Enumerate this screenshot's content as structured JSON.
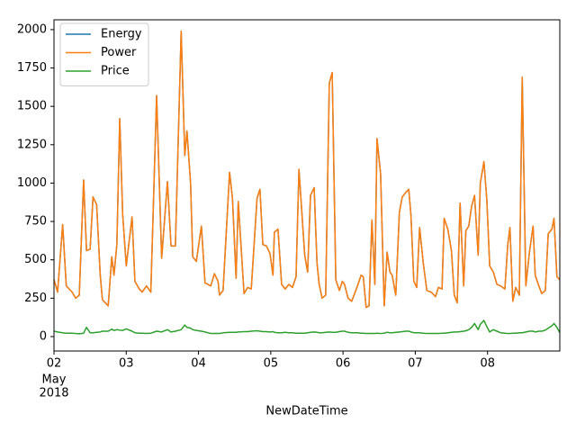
{
  "chart_data": {
    "type": "line",
    "xlabel": "NewDateTime",
    "x_month_label": "May",
    "x_year_label": "2018",
    "x": [
      2.0,
      2.05,
      2.12,
      2.17,
      2.25,
      2.3,
      2.35,
      2.41,
      2.45,
      2.5,
      2.54,
      2.59,
      2.64,
      2.67,
      2.75,
      2.8,
      2.83,
      2.87,
      2.91,
      2.95,
      3.0,
      3.08,
      3.12,
      3.18,
      3.22,
      3.28,
      3.34,
      3.42,
      3.49,
      3.57,
      3.62,
      3.68,
      3.76,
      3.81,
      3.84,
      3.89,
      3.92,
      3.97,
      4.04,
      4.09,
      4.17,
      4.22,
      4.27,
      4.29,
      4.34,
      4.43,
      4.47,
      4.52,
      4.55,
      4.63,
      4.68,
      4.73,
      4.81,
      4.85,
      4.89,
      4.94,
      4.99,
      5.03,
      5.05,
      5.1,
      5.15,
      5.2,
      5.25,
      5.3,
      5.35,
      5.39,
      5.42,
      5.47,
      5.51,
      5.55,
      5.6,
      5.64,
      5.67,
      5.71,
      5.76,
      5.81,
      5.85,
      5.9,
      5.95,
      5.99,
      6.02,
      6.07,
      6.12,
      6.2,
      6.25,
      6.28,
      6.32,
      6.36,
      6.4,
      6.44,
      6.47,
      6.52,
      6.57,
      6.61,
      6.65,
      6.68,
      6.73,
      6.78,
      6.82,
      6.87,
      6.91,
      6.94,
      6.98,
      7.02,
      7.06,
      7.11,
      7.16,
      7.22,
      7.28,
      7.32,
      7.37,
      7.4,
      7.45,
      7.5,
      7.54,
      7.58,
      7.62,
      7.67,
      7.7,
      7.74,
      7.78,
      7.82,
      7.87,
      7.9,
      7.95,
      7.99,
      8.03,
      8.08,
      8.13,
      8.18,
      8.24,
      8.28,
      8.31,
      8.35,
      8.39,
      8.44,
      8.48,
      8.53,
      8.58,
      8.63,
      8.66,
      8.71,
      8.75,
      8.8,
      8.84,
      8.89,
      8.92,
      8.96,
      9.0
    ],
    "series": [
      {
        "name": "Energy",
        "color": "#1f77b4",
        "values": [
          370,
          290,
          730,
          330,
          290,
          250,
          270,
          1020,
          560,
          570,
          910,
          860,
          400,
          240,
          200,
          520,
          400,
          600,
          1420,
          800,
          460,
          780,
          360,
          310,
          290,
          330,
          290,
          1570,
          510,
          1010,
          590,
          590,
          1990,
          1180,
          1340,
          1000,
          520,
          490,
          720,
          350,
          330,
          410,
          360,
          270,
          300,
          1070,
          900,
          380,
          880,
          280,
          320,
          310,
          900,
          960,
          600,
          590,
          540,
          400,
          680,
          700,
          340,
          310,
          340,
          320,
          390,
          1090,
          880,
          530,
          420,
          920,
          970,
          480,
          340,
          250,
          270,
          1650,
          1720,
          370,
          300,
          360,
          340,
          250,
          230,
          330,
          400,
          390,
          190,
          200,
          760,
          340,
          1290,
          1060,
          200,
          550,
          420,
          400,
          270,
          810,
          910,
          940,
          960,
          790,
          360,
          320,
          710,
          480,
          300,
          290,
          260,
          320,
          310,
          770,
          700,
          560,
          270,
          220,
          870,
          330,
          690,
          720,
          850,
          920,
          530,
          1000,
          1140,
          890,
          460,
          420,
          340,
          330,
          310,
          600,
          710,
          230,
          320,
          270,
          1690,
          330,
          550,
          720,
          400,
          330,
          280,
          300,
          670,
          700,
          770,
          390,
          370
        ]
      },
      {
        "name": "Power",
        "color": "#ff7f0e",
        "values": [
          370,
          290,
          730,
          330,
          290,
          250,
          270,
          1020,
          560,
          570,
          910,
          860,
          400,
          240,
          200,
          520,
          400,
          600,
          1420,
          800,
          460,
          780,
          360,
          310,
          290,
          330,
          290,
          1570,
          510,
          1010,
          590,
          590,
          1990,
          1180,
          1340,
          1000,
          520,
          490,
          720,
          350,
          330,
          410,
          360,
          270,
          300,
          1070,
          900,
          380,
          880,
          280,
          320,
          310,
          900,
          960,
          600,
          590,
          540,
          400,
          680,
          700,
          340,
          310,
          340,
          320,
          390,
          1090,
          880,
          530,
          420,
          920,
          970,
          480,
          340,
          250,
          270,
          1650,
          1720,
          370,
          300,
          360,
          340,
          250,
          230,
          330,
          400,
          390,
          190,
          200,
          760,
          340,
          1290,
          1060,
          200,
          550,
          420,
          400,
          270,
          810,
          910,
          940,
          960,
          790,
          360,
          320,
          710,
          480,
          300,
          290,
          260,
          320,
          310,
          770,
          700,
          560,
          270,
          220,
          870,
          330,
          690,
          720,
          850,
          920,
          530,
          1000,
          1140,
          890,
          460,
          420,
          340,
          330,
          310,
          600,
          710,
          230,
          320,
          270,
          1690,
          330,
          550,
          720,
          400,
          330,
          280,
          300,
          670,
          700,
          770,
          390,
          370
        ]
      },
      {
        "name": "Price",
        "color": "#2ca02c",
        "values": [
          35,
          30,
          25,
          22,
          22,
          20,
          18,
          22,
          60,
          25,
          25,
          28,
          30,
          35,
          35,
          48,
          40,
          45,
          42,
          40,
          50,
          35,
          25,
          22,
          22,
          20,
          22,
          35,
          30,
          45,
          30,
          35,
          45,
          75,
          60,
          55,
          45,
          40,
          35,
          30,
          20,
          20,
          20,
          20,
          25,
          28,
          28,
          28,
          30,
          32,
          32,
          35,
          38,
          35,
          32,
          32,
          30,
          32,
          28,
          25,
          25,
          28,
          25,
          25,
          22,
          22,
          22,
          22,
          25,
          28,
          30,
          28,
          25,
          25,
          28,
          30,
          28,
          28,
          32,
          35,
          35,
          28,
          25,
          25,
          22,
          22,
          20,
          20,
          20,
          20,
          22,
          20,
          22,
          28,
          25,
          25,
          28,
          30,
          32,
          35,
          35,
          30,
          25,
          25,
          25,
          22,
          20,
          20,
          20,
          20,
          22,
          22,
          25,
          28,
          30,
          30,
          32,
          35,
          38,
          45,
          60,
          85,
          45,
          80,
          105,
          65,
          30,
          45,
          35,
          25,
          22,
          20,
          20,
          22,
          22,
          25,
          25,
          30,
          35,
          35,
          30,
          35,
          35,
          42,
          55,
          70,
          85,
          60,
          25
        ]
      }
    ],
    "xlim": [
      2,
      9
    ],
    "xticks": [
      {
        "value": 2,
        "label": "02"
      },
      {
        "value": 3,
        "label": "03"
      },
      {
        "value": 4,
        "label": "04"
      },
      {
        "value": 5,
        "label": "05"
      },
      {
        "value": 6,
        "label": "06"
      },
      {
        "value": 7,
        "label": "07"
      },
      {
        "value": 8,
        "label": "08"
      }
    ],
    "ylim": [
      -94,
      2064
    ],
    "yticks": [
      0,
      250,
      500,
      750,
      1000,
      1250,
      1500,
      1750,
      2000
    ],
    "legend": "upper left"
  }
}
